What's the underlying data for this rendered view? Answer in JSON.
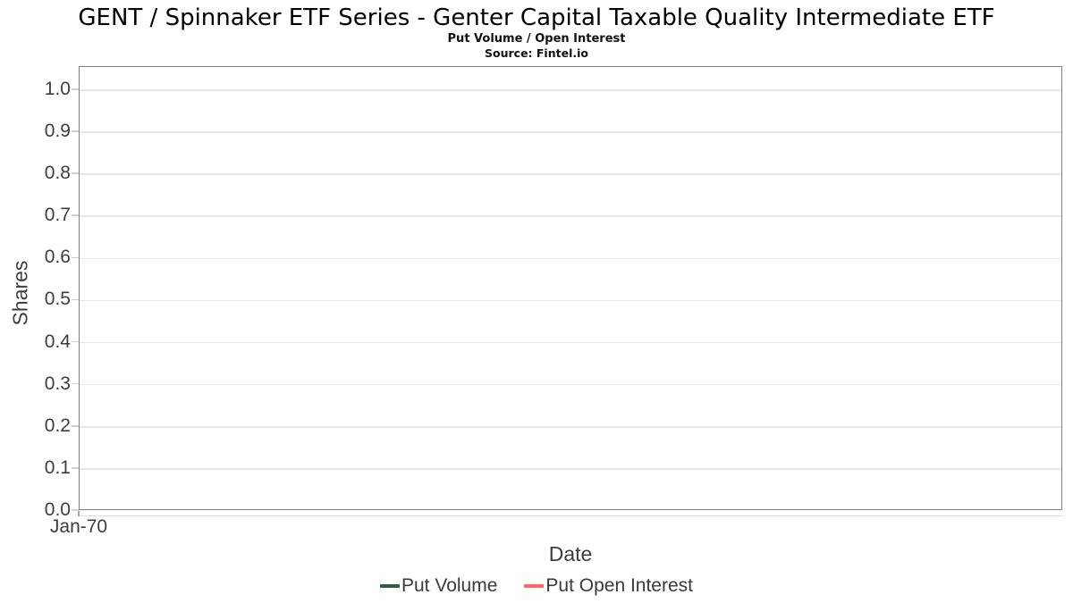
{
  "chart_data": {
    "type": "line",
    "title": "GENT / Spinnaker ETF Series - Genter Capital Taxable Quality Intermediate ETF",
    "subtitle": "Put Volume / Open Interest",
    "source_note": "Source: Fintel.io",
    "xlabel": "Date",
    "ylabel": "Shares",
    "ylim": [
      0.0,
      1.055
    ],
    "grid": "horizontal",
    "legend_position": "bottom",
    "y_ticks": [
      {
        "value": 0.0,
        "label": "0.0"
      },
      {
        "value": 0.1,
        "label": "0.1"
      },
      {
        "value": 0.2,
        "label": "0.2"
      },
      {
        "value": 0.3,
        "label": "0.3"
      },
      {
        "value": 0.4,
        "label": "0.4"
      },
      {
        "value": 0.5,
        "label": "0.5"
      },
      {
        "value": 0.6,
        "label": "0.6"
      },
      {
        "value": 0.7,
        "label": "0.7"
      },
      {
        "value": 0.8,
        "label": "0.8"
      },
      {
        "value": 0.9,
        "label": "0.9"
      },
      {
        "value": 1.0,
        "label": "1.0"
      }
    ],
    "x_ticks": [
      {
        "label": "Jan-70",
        "x_frac": 0.0
      }
    ],
    "series": [
      {
        "name": "Put Volume",
        "color": "#2b5b3c",
        "x": [],
        "y": []
      },
      {
        "name": "Put Open Interest",
        "color": "#fd6464",
        "x": [],
        "y": []
      }
    ]
  }
}
